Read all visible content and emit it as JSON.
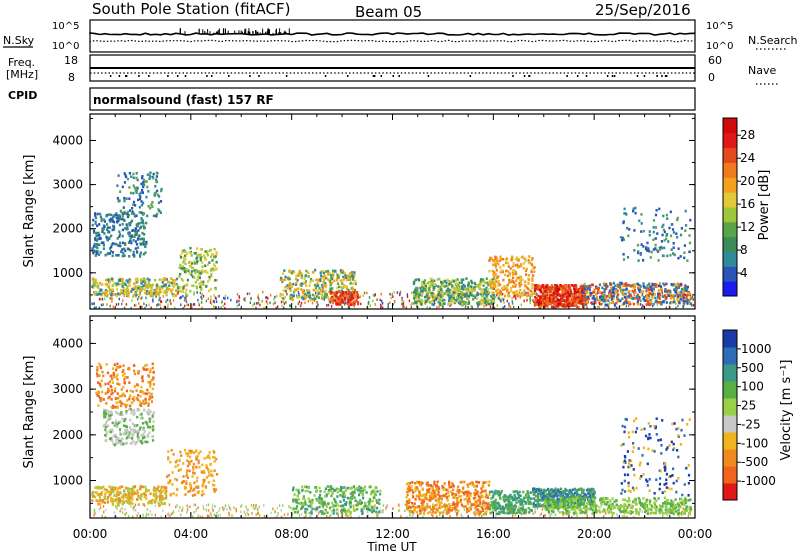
{
  "header": {
    "station": "South Pole Station (fitACF)",
    "beam": "Beam 05",
    "date": "25/Sep/2016"
  },
  "strip_labels": {
    "nsky": "N.Sky",
    "nsearch": "N.Search",
    "freq_line1": "Freq.",
    "freq_line2": "[MHz]",
    "nave": "Nave",
    "cpid": "CPID",
    "cpid_value": "normalsound (fast) 157 RF"
  },
  "strip_ticks": {
    "left_top_upper": "10^5",
    "left_top_lower": "10^0",
    "right_top_upper": "10^5",
    "right_top_lower": "10^0",
    "freq_upper": "18",
    "freq_lower": "8",
    "nave_upper": "60",
    "nave_lower": "0"
  },
  "colors": {
    "power_scale": [
      "#1c1cf0",
      "#2a55b8",
      "#2f8a9a",
      "#3c8c5a",
      "#5aa548",
      "#9ec83a",
      "#e3c83a",
      "#f4a21e",
      "#f07a1e",
      "#e54a1e",
      "#e01818",
      "#d00a0a"
    ],
    "velocity_scale": [
      "#1a3aa8",
      "#2f6cb8",
      "#3a9a86",
      "#58b045",
      "#9ad045",
      "#c8c8c8",
      "#f0b41e",
      "#f08a1e",
      "#f0641e",
      "#e01818"
    ]
  },
  "chart_data": [
    {
      "type": "heatmap",
      "title": "",
      "ylabel": "Slant Range [km]",
      "xlabel": "Time UT",
      "yticks": [
        "1000",
        "2000",
        "3000",
        "4000"
      ],
      "ylim": [
        180,
        4600
      ],
      "colorbar": {
        "label": "Power [dB]",
        "ticks": [
          "4",
          "8",
          "12",
          "16",
          "20",
          "24",
          "28"
        ],
        "range": [
          0,
          31
        ]
      }
    },
    {
      "type": "heatmap",
      "title": "",
      "ylabel": "Slant Range [km]",
      "xlabel": "Time UT",
      "xticks": [
        "00:00",
        "04:00",
        "08:00",
        "12:00",
        "16:00",
        "20:00",
        "00:00"
      ],
      "yticks": [
        "1000",
        "2000",
        "3000",
        "4000"
      ],
      "ylim": [
        180,
        4600
      ],
      "colorbar": {
        "label": "Velocity [m s⁻¹]",
        "ticks": [
          "1000",
          "500",
          "100",
          "25",
          "-25",
          "-100",
          "-500",
          "-1000"
        ]
      }
    }
  ]
}
